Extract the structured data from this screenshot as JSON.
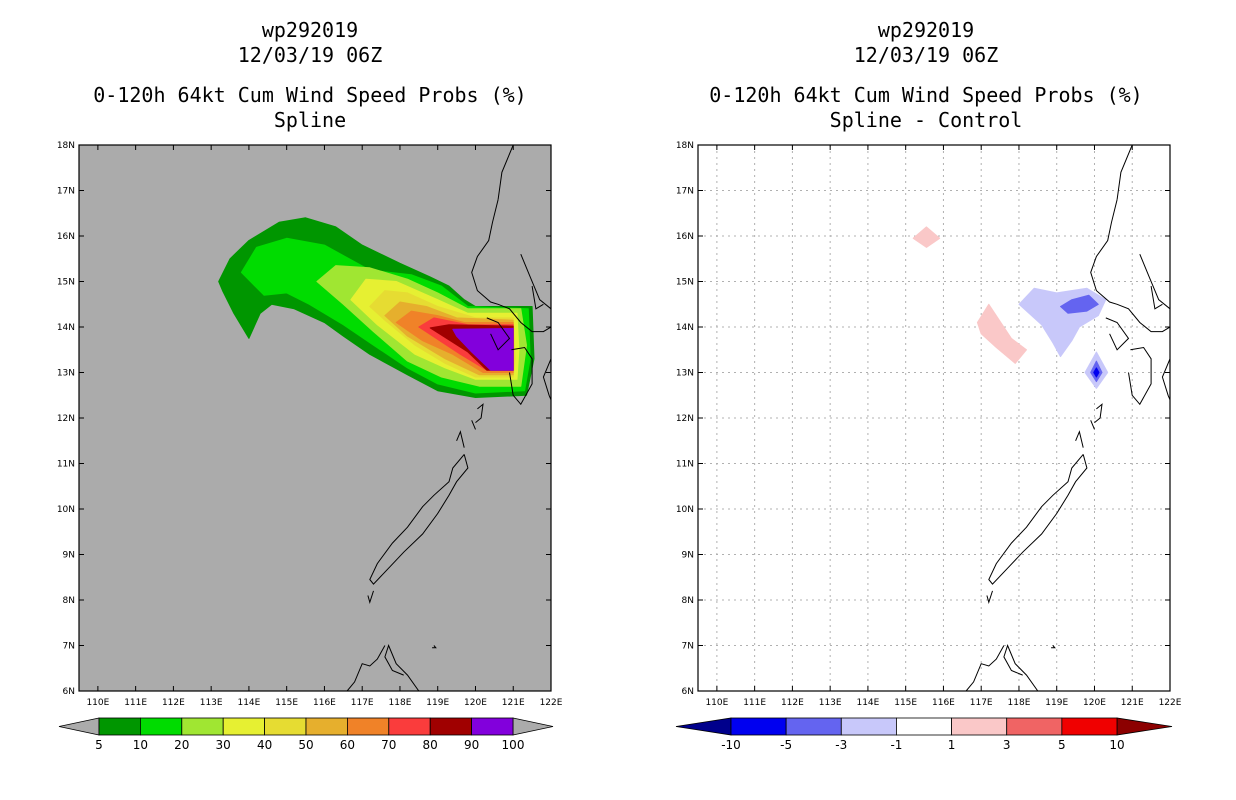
{
  "chart_data": [
    {
      "type": "heatmap",
      "title_lines": [
        "wp292019",
        "12/03/19 06Z",
        "0-120h 64kt Cum Wind Speed Probs (%)",
        "Spline"
      ],
      "xlabel": "",
      "ylabel": "",
      "xlim": [
        109.5,
        122
      ],
      "ylim": [
        6,
        18
      ],
      "x_ticks": [
        "110E",
        "111E",
        "112E",
        "113E",
        "114E",
        "115E",
        "116E",
        "117E",
        "118E",
        "119E",
        "120E",
        "121E",
        "122E"
      ],
      "y_ticks": [
        "6N",
        "7N",
        "8N",
        "9N",
        "10N",
        "11N",
        "12N",
        "13N",
        "14N",
        "15N",
        "16N",
        "17N",
        "18N"
      ],
      "grid": false,
      "background": "#ababab",
      "colorbar": {
        "labels": [
          "5",
          "10",
          "20",
          "30",
          "40",
          "50",
          "60",
          "70",
          "80",
          "90",
          "100"
        ],
        "colors": [
          "#009600",
          "#00dc00",
          "#a0e632",
          "#e6f032",
          "#e6dc32",
          "#e6af2d",
          "#f08228",
          "#fa3c3c",
          "#a00000",
          "#8200dc"
        ]
      },
      "regions": [
        {
          "level": "5",
          "color": "#009600",
          "points": [
            [
              113.2,
              15
            ],
            [
              113.5,
              15.5
            ],
            [
              114,
              15.9
            ],
            [
              114.8,
              16.3
            ],
            [
              115.5,
              16.4
            ],
            [
              116.3,
              16.2
            ],
            [
              117,
              15.8
            ],
            [
              118,
              15.4
            ],
            [
              118.8,
              15.1
            ],
            [
              119.3,
              14.9
            ],
            [
              119.7,
              14.6
            ],
            [
              120,
              14.45
            ],
            [
              121.5,
              14.45
            ],
            [
              121.55,
              13.3
            ],
            [
              121.35,
              12.5
            ],
            [
              120,
              12.45
            ],
            [
              119,
              12.6
            ],
            [
              118.2,
              12.95
            ],
            [
              117.2,
              13.4
            ],
            [
              116.5,
              13.8
            ],
            [
              116,
              14.1
            ],
            [
              115.2,
              14.4
            ],
            [
              114.6,
              14.5
            ],
            [
              114.3,
              14.3
            ],
            [
              114,
              13.75
            ],
            [
              113.6,
              14.3
            ],
            [
              113.3,
              14.8
            ]
          ]
        },
        {
          "level": "10",
          "color": "#00dc00",
          "points": [
            [
              113.8,
              15.2
            ],
            [
              114.2,
              15.75
            ],
            [
              115,
              15.95
            ],
            [
              116,
              15.8
            ],
            [
              117.2,
              15.25
            ],
            [
              118.3,
              15.15
            ],
            [
              119.1,
              14.9
            ],
            [
              119.8,
              14.45
            ],
            [
              121.4,
              14.4
            ],
            [
              121.45,
              13.3
            ],
            [
              121.3,
              12.6
            ],
            [
              120,
              12.55
            ],
            [
              119,
              12.75
            ],
            [
              118.2,
              13.1
            ],
            [
              117.3,
              13.6
            ],
            [
              116.5,
              14.05
            ],
            [
              115.6,
              14.5
            ],
            [
              115,
              14.75
            ],
            [
              114.4,
              14.7
            ]
          ]
        },
        {
          "level": "20",
          "color": "#a0e632",
          "points": [
            [
              115.8,
              15
            ],
            [
              116.3,
              15.35
            ],
            [
              117.2,
              15.3
            ],
            [
              118.2,
              15.05
            ],
            [
              119,
              14.75
            ],
            [
              119.8,
              14.4
            ],
            [
              121.2,
              14.4
            ],
            [
              121.35,
              13.6
            ],
            [
              121.2,
              12.7
            ],
            [
              120.1,
              12.7
            ],
            [
              119.1,
              12.9
            ],
            [
              118.2,
              13.25
            ],
            [
              117.3,
              13.9
            ],
            [
              116.5,
              14.5
            ]
          ]
        },
        {
          "level": "30",
          "color": "#e6f032",
          "points": [
            [
              116.7,
              14.6
            ],
            [
              117.1,
              15.05
            ],
            [
              117.9,
              15
            ],
            [
              119,
              14.6
            ],
            [
              119.8,
              14.3
            ],
            [
              121.1,
              14.3
            ],
            [
              121.15,
              13.5
            ],
            [
              121.1,
              12.85
            ],
            [
              120,
              12.85
            ],
            [
              119.2,
              13.1
            ],
            [
              118.4,
              13.4
            ],
            [
              117.4,
              14.05
            ]
          ]
        },
        {
          "level": "40",
          "color": "#e6dc32",
          "points": [
            [
              117.2,
              14.45
            ],
            [
              117.6,
              14.8
            ],
            [
              118.2,
              14.75
            ],
            [
              119,
              14.45
            ],
            [
              120,
              14.2
            ],
            [
              121,
              14.2
            ],
            [
              121.05,
              13.3
            ],
            [
              121,
              12.9
            ],
            [
              120,
              12.9
            ],
            [
              119.2,
              13.2
            ],
            [
              118.4,
              13.6
            ],
            [
              117.6,
              14.15
            ]
          ]
        },
        {
          "level": "50",
          "color": "#e6af2d",
          "points": [
            [
              117.6,
              14.25
            ],
            [
              118,
              14.55
            ],
            [
              118.7,
              14.45
            ],
            [
              119.5,
              14.2
            ],
            [
              121,
              14.15
            ],
            [
              121,
              13.35
            ],
            [
              121,
              12.95
            ],
            [
              120.1,
              12.95
            ],
            [
              119.2,
              13.3
            ],
            [
              118.2,
              13.8
            ]
          ]
        },
        {
          "level": "60",
          "color": "#f08228",
          "points": [
            [
              117.9,
              14.1
            ],
            [
              118.3,
              14.35
            ],
            [
              119,
              14.25
            ],
            [
              119.7,
              14.1
            ],
            [
              121,
              14.1
            ],
            [
              121,
              13
            ],
            [
              120.2,
              13
            ],
            [
              119.4,
              13.4
            ],
            [
              118.6,
              13.7
            ]
          ]
        },
        {
          "level": "70",
          "color": "#fa3c3c",
          "points": [
            [
              118.5,
              14
            ],
            [
              118.9,
              14.2
            ],
            [
              119.8,
              14.05
            ],
            [
              121,
              14.05
            ],
            [
              121,
              13.05
            ],
            [
              120.3,
              13.05
            ],
            [
              119.6,
              13.4
            ]
          ]
        },
        {
          "level": "80",
          "color": "#a00000",
          "points": [
            [
              118.8,
              13.98
            ],
            [
              119.3,
              14.05
            ],
            [
              121,
              14.02
            ],
            [
              121,
              13.05
            ],
            [
              120.3,
              13.05
            ],
            [
              119.8,
              13.45
            ]
          ]
        },
        {
          "level": "100",
          "color": "#8200dc",
          "points": [
            [
              119.4,
              13.95
            ],
            [
              121,
              13.97
            ],
            [
              121,
              13.05
            ],
            [
              120.4,
              13.05
            ],
            [
              119.9,
              13.45
            ],
            [
              119.5,
              13.8
            ]
          ]
        }
      ]
    },
    {
      "type": "heatmap",
      "title_lines": [
        "wp292019",
        "12/03/19 06Z",
        "0-120h 64kt Cum Wind Speed Probs (%)",
        "Spline - Control"
      ],
      "xlabel": "",
      "ylabel": "",
      "xlim": [
        109.5,
        122
      ],
      "ylim": [
        6,
        18
      ],
      "x_ticks": [
        "110E",
        "111E",
        "112E",
        "113E",
        "114E",
        "115E",
        "116E",
        "117E",
        "118E",
        "119E",
        "120E",
        "121E",
        "122E"
      ],
      "y_ticks": [
        "6N",
        "7N",
        "8N",
        "9N",
        "10N",
        "11N",
        "12N",
        "13N",
        "14N",
        "15N",
        "16N",
        "17N",
        "18N"
      ],
      "grid": true,
      "background": "#ffffff",
      "colorbar": {
        "labels": [
          "-10",
          "-5",
          "-3",
          "-1",
          "1",
          "3",
          "5",
          "10"
        ],
        "colors": [
          "#00008c",
          "#0000f0",
          "#6464f0",
          "#c8c8fa",
          "#ffffff",
          "#fac8c8",
          "#f06464",
          "#f00000",
          "#8c0000"
        ]
      },
      "regions": [
        {
          "level": "1 to 3",
          "color": "#fac8c8",
          "points": [
            [
              115.2,
              15.95
            ],
            [
              115.55,
              16.2
            ],
            [
              115.9,
              15.95
            ],
            [
              115.55,
              15.75
            ]
          ]
        },
        {
          "level": "1 to 3",
          "color": "#fac8c8",
          "points": [
            [
              116.9,
              14.1
            ],
            [
              117.2,
              14.5
            ],
            [
              117.8,
              13.75
            ],
            [
              118.2,
              13.5
            ],
            [
              117.9,
              13.2
            ],
            [
              117.4,
              13.55
            ],
            [
              117,
              13.85
            ]
          ]
        },
        {
          "level": "-3 to -1",
          "color": "#c8c8fa",
          "points": [
            [
              118,
              14.5
            ],
            [
              118.4,
              14.85
            ],
            [
              119,
              14.75
            ],
            [
              119.8,
              14.85
            ],
            [
              120.3,
              14.6
            ],
            [
              120.1,
              14.25
            ],
            [
              119.6,
              14
            ],
            [
              119.4,
              13.7
            ],
            [
              119.1,
              13.35
            ],
            [
              118.9,
              13.65
            ],
            [
              118.6,
              14.05
            ]
          ]
        },
        {
          "level": "-5 to -3",
          "color": "#6464f0",
          "points": [
            [
              119.1,
              14.45
            ],
            [
              119.4,
              14.6
            ],
            [
              119.85,
              14.7
            ],
            [
              120.1,
              14.5
            ],
            [
              119.8,
              14.35
            ],
            [
              119.3,
              14.3
            ]
          ]
        },
        {
          "level": "-3 to -1",
          "color": "#c8c8fa",
          "points": [
            [
              119.75,
              13
            ],
            [
              120.05,
              13.45
            ],
            [
              120.35,
              13
            ],
            [
              120.05,
              12.65
            ]
          ]
        },
        {
          "level": "-5 to -3",
          "color": "#6464f0",
          "points": [
            [
              119.9,
              13
            ],
            [
              120.05,
              13.25
            ],
            [
              120.2,
              13
            ],
            [
              120.05,
              12.8
            ]
          ]
        },
        {
          "level": "-10 to -5",
          "color": "#0000f0",
          "points": [
            [
              119.98,
              13
            ],
            [
              120.05,
              13.1
            ],
            [
              120.12,
              13
            ],
            [
              120.05,
              12.9
            ]
          ]
        }
      ]
    }
  ]
}
